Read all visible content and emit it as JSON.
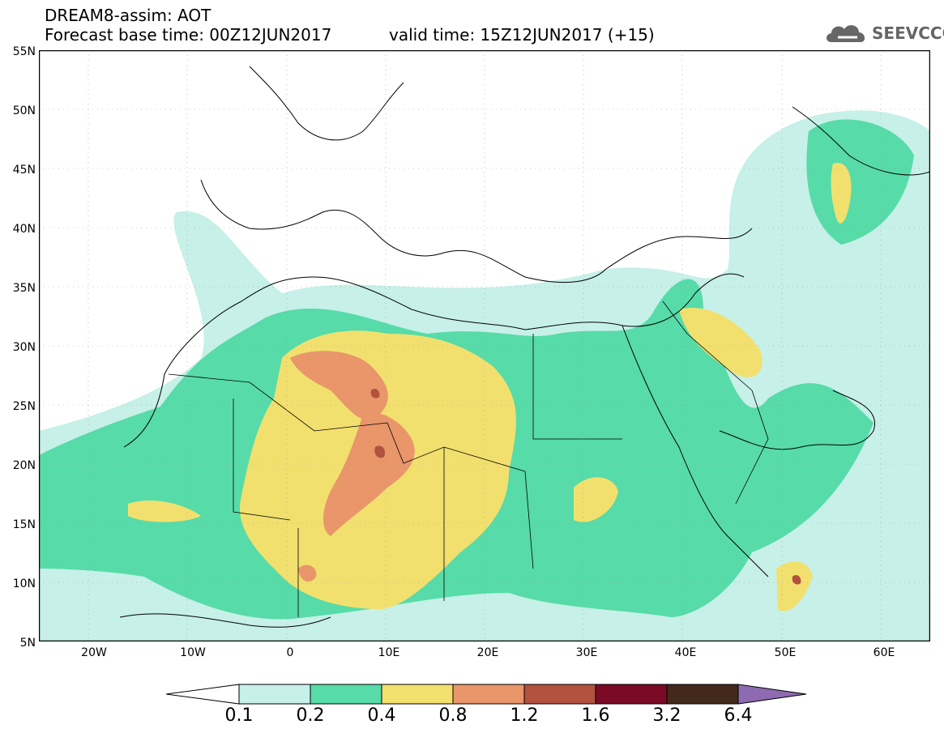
{
  "header": {
    "line1": "DREAM8-assim: AOT",
    "line2": "Forecast base time: 00Z12JUN2017",
    "line3": "valid time: 15Z12JUN2017 (+15)"
  },
  "logo": {
    "text": "SEEVCCC",
    "icon": "cloud-icon"
  },
  "map": {
    "lat_labels": [
      "55N",
      "50N",
      "45N",
      "40N",
      "35N",
      "30N",
      "25N",
      "20N",
      "15N",
      "10N",
      "5N"
    ],
    "lon_labels": [
      "20W",
      "10W",
      "0",
      "10E",
      "20E",
      "30E",
      "40E",
      "50E",
      "60E"
    ],
    "lon_range": [
      -25,
      65
    ],
    "lat_range": [
      5,
      55
    ],
    "grid": "dotted"
  },
  "colorbar": {
    "labels": [
      "0.1",
      "0.2",
      "0.4",
      "0.8",
      "1.2",
      "1.6",
      "3.2",
      "6.4"
    ],
    "colors": [
      "#c6f0e8",
      "#57dba8",
      "#f2e06e",
      "#e8966a",
      "#b2513d",
      "#7a0a25",
      "#43291a",
      "#8e6bb0"
    ]
  },
  "palette": {
    "c1": "#c6f0e8",
    "c2": "#57dba8",
    "c3": "#f2e06e",
    "c4": "#e8966a",
    "c5": "#b2513d",
    "c6": "#7a0a25"
  }
}
